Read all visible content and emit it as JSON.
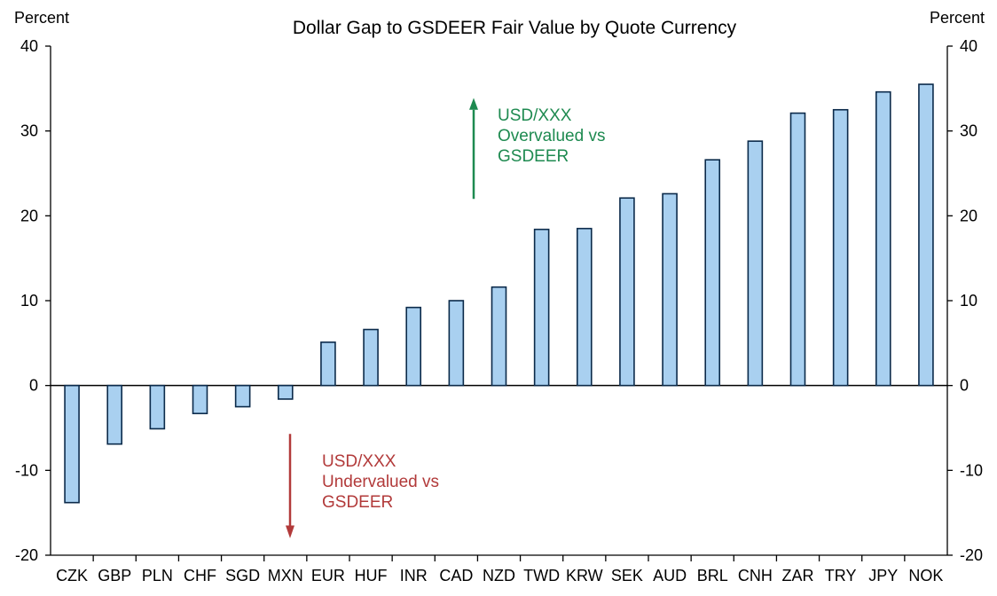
{
  "chart_data": {
    "type": "bar",
    "title": "Dollar Gap to GSDEER Fair Value by Quote Currency",
    "ylabel_left": "Percent",
    "ylabel_right": "Percent",
    "ylim": [
      -20,
      40
    ],
    "yticks": [
      -20,
      -10,
      0,
      10,
      20,
      30,
      40
    ],
    "categories": [
      "CZK",
      "GBP",
      "PLN",
      "CHF",
      "SGD",
      "MXN",
      "EUR",
      "HUF",
      "INR",
      "CAD",
      "NZD",
      "TWD",
      "KRW",
      "SEK",
      "AUD",
      "BRL",
      "CNH",
      "ZAR",
      "TRY",
      "JPY",
      "NOK"
    ],
    "values": [
      -13.8,
      -6.9,
      -5.1,
      -3.3,
      -2.5,
      -1.6,
      5.1,
      6.6,
      9.2,
      10.0,
      11.6,
      18.4,
      18.5,
      22.1,
      22.6,
      26.6,
      28.8,
      32.1,
      32.5,
      34.6,
      35.5
    ],
    "bar_fill": "#a9d0f0",
    "bar_stroke": "#0b2a4a",
    "annotations": [
      {
        "text": [
          "USD/XXX",
          "Overvalued vs",
          "GSDEER"
        ],
        "color": "#1e8a50",
        "arrow": "up"
      },
      {
        "text": [
          "USD/XXX",
          "Undervalued vs",
          "GSDEER"
        ],
        "color": "#b23a3a",
        "arrow": "down"
      }
    ]
  }
}
